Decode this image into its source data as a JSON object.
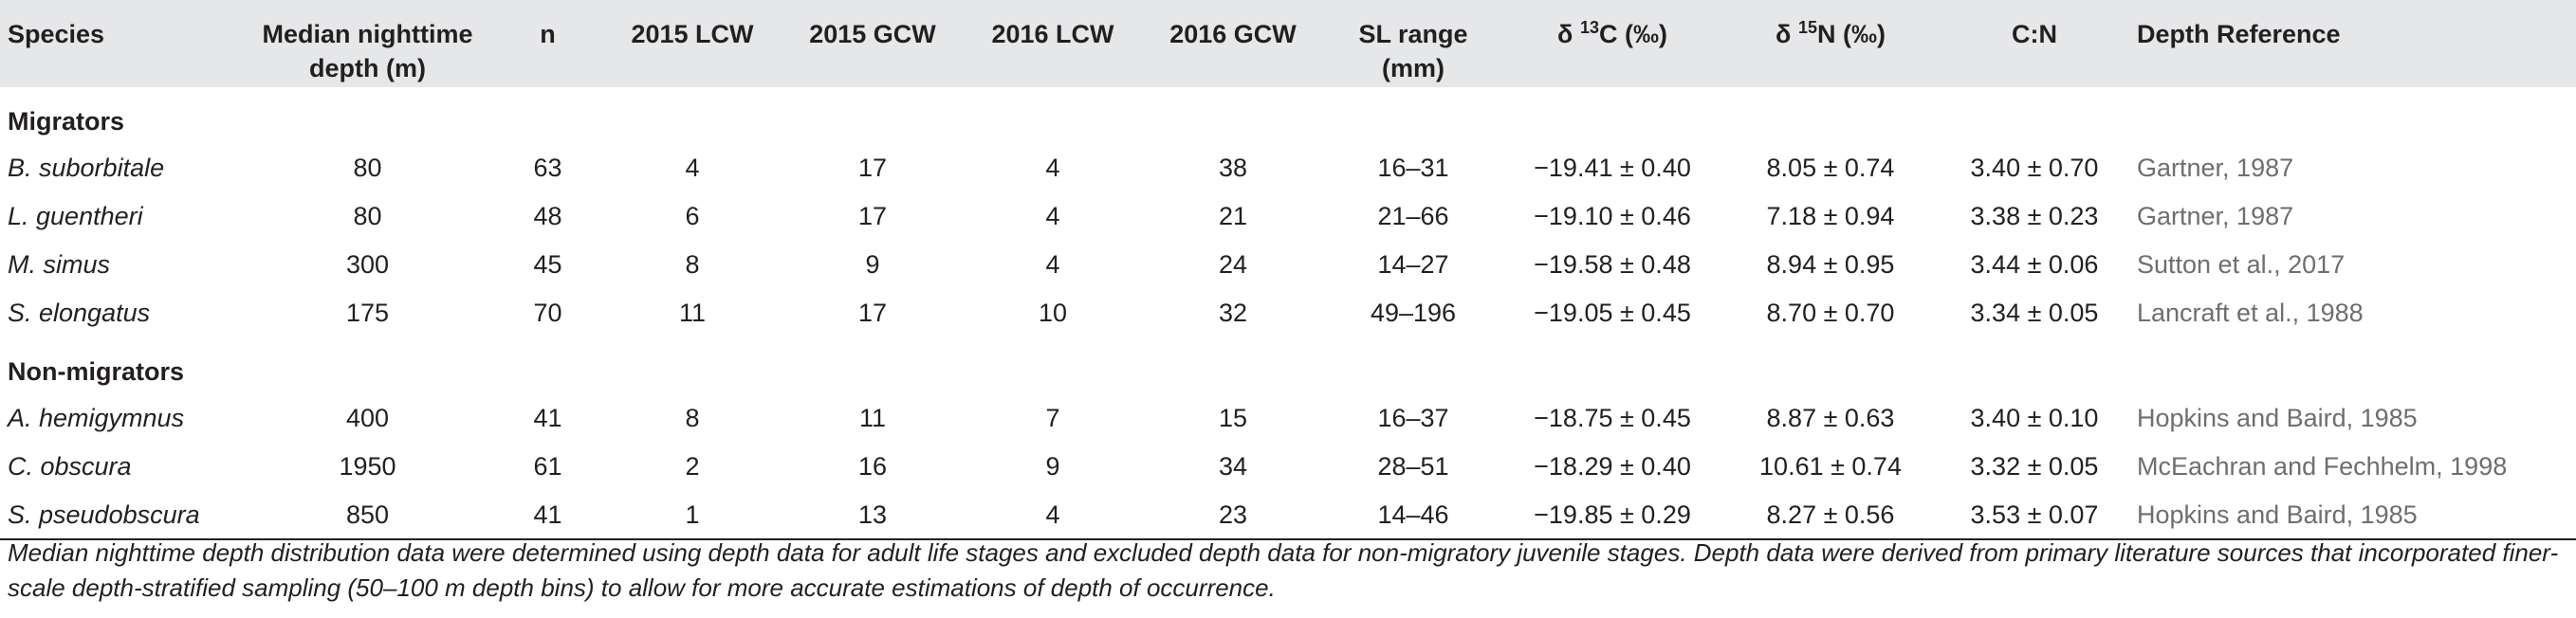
{
  "table": {
    "headers": {
      "species": "Species",
      "depth": "Median nighttime depth (m)",
      "n": "n",
      "lcw2015": "2015 LCW",
      "gcw2015": "2015 GCW",
      "lcw2016": "2016 LCW",
      "gcw2016": "2016 GCW",
      "sl": "SL range (mm)",
      "d13c_prefix": "δ ",
      "d13c_sup": "13",
      "d13c_suffix": "C (‰)",
      "d15n_prefix": "δ ",
      "d15n_sup": "15",
      "d15n_suffix": "N (‰)",
      "cn": "C:N",
      "ref": "Depth Reference"
    },
    "groups": [
      {
        "label": "Migrators",
        "rows": [
          {
            "species": "B. suborbitale",
            "depth": "80",
            "n": "63",
            "lcw2015": "4",
            "gcw2015": "17",
            "lcw2016": "4",
            "gcw2016": "38",
            "sl": "16–31",
            "d13c": "−19.41 ± 0.40",
            "d15n": "8.05 ± 0.74",
            "cn": "3.40 ± 0.70",
            "ref": "Gartner, 1987"
          },
          {
            "species": "L. guentheri",
            "depth": "80",
            "n": "48",
            "lcw2015": "6",
            "gcw2015": "17",
            "lcw2016": "4",
            "gcw2016": "21",
            "sl": "21–66",
            "d13c": "−19.10 ± 0.46",
            "d15n": "7.18 ± 0.94",
            "cn": "3.38 ± 0.23",
            "ref": "Gartner, 1987"
          },
          {
            "species": "M. simus",
            "depth": "300",
            "n": "45",
            "lcw2015": "8",
            "gcw2015": "9",
            "lcw2016": "4",
            "gcw2016": "24",
            "sl": "14–27",
            "d13c": "−19.58 ± 0.48",
            "d15n": "8.94 ± 0.95",
            "cn": "3.44 ± 0.06",
            "ref": "Sutton et al., 2017"
          },
          {
            "species": "S. elongatus",
            "depth": "175",
            "n": "70",
            "lcw2015": "11",
            "gcw2015": "17",
            "lcw2016": "10",
            "gcw2016": "32",
            "sl": "49–196",
            "d13c": "−19.05 ± 0.45",
            "d15n": "8.70 ± 0.70",
            "cn": "3.34 ± 0.05",
            "ref": "Lancraft et al., 1988"
          }
        ]
      },
      {
        "label": "Non-migrators",
        "rows": [
          {
            "species": "A. hemigymnus",
            "depth": "400",
            "n": "41",
            "lcw2015": "8",
            "gcw2015": "11",
            "lcw2016": "7",
            "gcw2016": "15",
            "sl": "16–37",
            "d13c": "−18.75 ± 0.45",
            "d15n": "8.87 ± 0.63",
            "cn": "3.40 ± 0.10",
            "ref": "Hopkins and Baird, 1985"
          },
          {
            "species": "C. obscura",
            "depth": "1950",
            "n": "61",
            "lcw2015": "2",
            "gcw2015": "16",
            "lcw2016": "9",
            "gcw2016": "34",
            "sl": "28–51",
            "d13c": "−18.29 ± 0.40",
            "d15n": "10.61 ± 0.74",
            "cn": "3.32 ± 0.05",
            "ref": "McEachran and Fechhelm, 1998"
          },
          {
            "species": "S. pseudobscura",
            "depth": "850",
            "n": "41",
            "lcw2015": "1",
            "gcw2015": "13",
            "lcw2016": "4",
            "gcw2016": "23",
            "sl": "14–46",
            "d13c": "−19.85 ± 0.29",
            "d15n": "8.27 ± 0.56",
            "cn": "3.53 ± 0.07",
            "ref": "Hopkins and Baird, 1985"
          }
        ]
      }
    ],
    "footnote": "Median nighttime depth distribution data were determined using depth data for adult life stages and excluded depth data for non-migratory juvenile stages. Depth data were derived from primary literature sources that incorporated finer-scale depth-stratified sampling (50–100 m depth bins) to allow for more accurate estimations of depth of occurrence."
  }
}
